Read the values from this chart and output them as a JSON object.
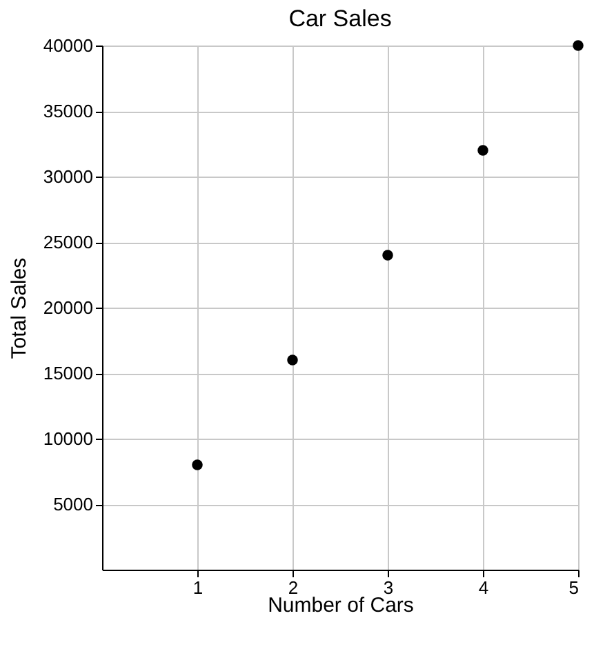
{
  "chart_data": {
    "type": "scatter",
    "title": "Car Sales",
    "xlabel": "Number of Cars",
    "ylabel": "Total Sales",
    "x": [
      1,
      2,
      3,
      4,
      5
    ],
    "values": [
      8000,
      16000,
      24000,
      32000,
      40000
    ],
    "color": "#000000",
    "xlim": [
      0,
      5
    ],
    "xticks": [
      1,
      2,
      3,
      4,
      5
    ],
    "ylim": [
      0,
      40000
    ],
    "yticks": [
      5000,
      10000,
      15000,
      20000,
      25000,
      30000,
      35000,
      40000
    ],
    "grid": true,
    "marker": "circle"
  }
}
